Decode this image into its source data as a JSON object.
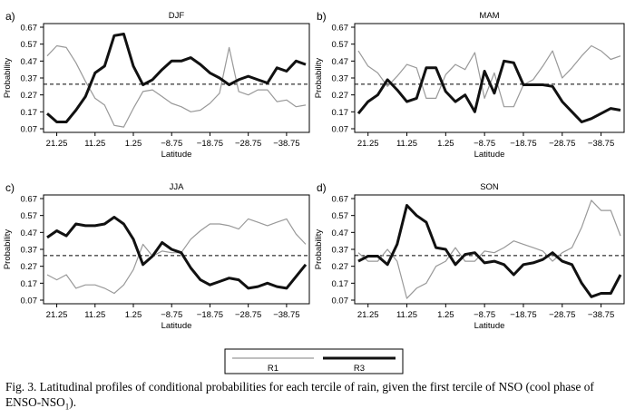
{
  "chart_data": [
    {
      "type": "line",
      "panel_label": "a)",
      "title": "DJF",
      "xlabel": "Latitude",
      "ylabel": "Probability",
      "x": [
        23.75,
        21.25,
        18.75,
        16.25,
        13.75,
        11.25,
        8.75,
        6.25,
        3.75,
        1.25,
        -1.25,
        -3.75,
        -6.25,
        -8.75,
        -11.25,
        -13.75,
        -16.25,
        -18.75,
        -21.25,
        -23.75,
        -26.25,
        -28.75,
        -31.25,
        -33.75,
        -36.25,
        -38.75,
        -41.25,
        -43.75
      ],
      "xticks": [
        "21.25",
        "11.25",
        "1.25",
        "−8.75",
        "−18.75",
        "−28.75",
        "−38.75"
      ],
      "xtick_values": [
        21.25,
        11.25,
        1.25,
        -8.75,
        -18.75,
        -28.75,
        -38.75
      ],
      "yticks": [
        "0.07",
        "0.17",
        "0.27",
        "0.37",
        "0.47",
        "0.57",
        "0.67"
      ],
      "ylim": [
        0.07,
        0.67
      ],
      "reference_line": 0.333,
      "series": [
        {
          "name": "R1",
          "values": [
            0.5,
            0.56,
            0.55,
            0.46,
            0.35,
            0.25,
            0.21,
            0.09,
            0.08,
            0.19,
            0.29,
            0.3,
            0.26,
            0.22,
            0.2,
            0.17,
            0.18,
            0.22,
            0.28,
            0.55,
            0.29,
            0.27,
            0.3,
            0.3,
            0.23,
            0.24,
            0.2,
            0.21
          ]
        },
        {
          "name": "R3",
          "values": [
            0.16,
            0.11,
            0.11,
            0.18,
            0.26,
            0.4,
            0.44,
            0.62,
            0.63,
            0.44,
            0.33,
            0.36,
            0.42,
            0.47,
            0.47,
            0.49,
            0.45,
            0.4,
            0.37,
            0.33,
            0.36,
            0.38,
            0.36,
            0.34,
            0.43,
            0.41,
            0.47,
            0.45
          ]
        }
      ]
    },
    {
      "type": "line",
      "panel_label": "b)",
      "title": "MAM",
      "xlabel": "Latitude",
      "ylabel": "Probability",
      "x": [
        23.75,
        21.25,
        18.75,
        16.25,
        13.75,
        11.25,
        8.75,
        6.25,
        3.75,
        1.25,
        -1.25,
        -3.75,
        -6.25,
        -8.75,
        -11.25,
        -13.75,
        -16.25,
        -18.75,
        -21.25,
        -23.75,
        -26.25,
        -28.75,
        -31.25,
        -33.75,
        -36.25,
        -38.75,
        -41.25,
        -43.75
      ],
      "xticks": [
        "21.25",
        "11.25",
        "1.25",
        "−8.75",
        "−18.75",
        "−28.75",
        "−38.75"
      ],
      "xtick_values": [
        21.25,
        11.25,
        1.25,
        -8.75,
        -18.75,
        -28.75,
        -38.75
      ],
      "yticks": [
        "0.07",
        "0.17",
        "0.27",
        "0.37",
        "0.47",
        "0.57",
        "0.67"
      ],
      "ylim": [
        0.07,
        0.67
      ],
      "reference_line": 0.333,
      "series": [
        {
          "name": "R1",
          "values": [
            0.53,
            0.44,
            0.4,
            0.32,
            0.38,
            0.45,
            0.43,
            0.25,
            0.25,
            0.39,
            0.45,
            0.42,
            0.52,
            0.25,
            0.4,
            0.2,
            0.2,
            0.33,
            0.36,
            0.44,
            0.53,
            0.37,
            0.43,
            0.5,
            0.56,
            0.53,
            0.48,
            0.5
          ]
        },
        {
          "name": "R3",
          "values": [
            0.16,
            0.23,
            0.27,
            0.36,
            0.3,
            0.23,
            0.25,
            0.43,
            0.43,
            0.29,
            0.23,
            0.27,
            0.17,
            0.41,
            0.28,
            0.47,
            0.46,
            0.33,
            0.33,
            0.33,
            0.32,
            0.23,
            0.17,
            0.11,
            0.13,
            0.16,
            0.19,
            0.18
          ]
        }
      ]
    },
    {
      "type": "line",
      "panel_label": "c)",
      "title": "JJA",
      "xlabel": "Latitude",
      "ylabel": "Probability",
      "x": [
        23.75,
        21.25,
        18.75,
        16.25,
        13.75,
        11.25,
        8.75,
        6.25,
        3.75,
        1.25,
        -1.25,
        -3.75,
        -6.25,
        -8.75,
        -11.25,
        -13.75,
        -16.25,
        -18.75,
        -21.25,
        -23.75,
        -26.25,
        -28.75,
        -31.25,
        -33.75,
        -36.25,
        -38.75,
        -41.25,
        -43.75
      ],
      "xticks": [
        "21.25",
        "11.25",
        "1.25",
        "−8.75",
        "−18.75",
        "−28.75",
        "−38.75"
      ],
      "xtick_values": [
        21.25,
        11.25,
        1.25,
        -8.75,
        -18.75,
        -28.75,
        -38.75
      ],
      "yticks": [
        "0.07",
        "0.17",
        "0.27",
        "0.37",
        "0.47",
        "0.57",
        "0.67"
      ],
      "ylim": [
        0.07,
        0.67
      ],
      "reference_line": 0.333,
      "series": [
        {
          "name": "R1",
          "values": [
            0.22,
            0.19,
            0.22,
            0.14,
            0.16,
            0.16,
            0.14,
            0.11,
            0.16,
            0.25,
            0.4,
            0.33,
            0.36,
            0.35,
            0.35,
            0.43,
            0.48,
            0.52,
            0.52,
            0.51,
            0.49,
            0.55,
            0.53,
            0.51,
            0.53,
            0.55,
            0.46,
            0.4
          ]
        },
        {
          "name": "R3",
          "values": [
            0.44,
            0.48,
            0.45,
            0.52,
            0.51,
            0.51,
            0.52,
            0.56,
            0.52,
            0.43,
            0.28,
            0.33,
            0.41,
            0.37,
            0.35,
            0.26,
            0.19,
            0.16,
            0.18,
            0.2,
            0.19,
            0.14,
            0.15,
            0.17,
            0.15,
            0.14,
            0.21,
            0.28
          ]
        }
      ]
    },
    {
      "type": "line",
      "panel_label": "d)",
      "title": "SON",
      "xlabel": "Latitude",
      "ylabel": "Probability",
      "x": [
        23.75,
        21.25,
        18.75,
        16.25,
        13.75,
        11.25,
        8.75,
        6.25,
        3.75,
        1.25,
        -1.25,
        -3.75,
        -6.25,
        -8.75,
        -11.25,
        -13.75,
        -16.25,
        -18.75,
        -21.25,
        -23.75,
        -26.25,
        -28.75,
        -31.25,
        -33.75,
        -36.25,
        -38.75,
        -41.25,
        -43.75
      ],
      "xticks": [
        "21.25",
        "11.25",
        "1.25",
        "−8.75",
        "−18.75",
        "−28.75",
        "−38.75"
      ],
      "xtick_values": [
        21.25,
        11.25,
        1.25,
        -8.75,
        -18.75,
        -28.75,
        -38.75
      ],
      "yticks": [
        "0.07",
        "0.17",
        "0.27",
        "0.37",
        "0.47",
        "0.57",
        "0.67"
      ],
      "ylim": [
        0.07,
        0.67
      ],
      "reference_line": 0.333,
      "series": [
        {
          "name": "R1",
          "values": [
            0.35,
            0.3,
            0.3,
            0.37,
            0.3,
            0.08,
            0.14,
            0.17,
            0.27,
            0.3,
            0.38,
            0.3,
            0.3,
            0.36,
            0.35,
            0.38,
            0.42,
            0.4,
            0.38,
            0.36,
            0.3,
            0.35,
            0.38,
            0.5,
            0.66,
            0.6,
            0.6,
            0.45
          ]
        },
        {
          "name": "R3",
          "values": [
            0.3,
            0.33,
            0.33,
            0.28,
            0.4,
            0.63,
            0.57,
            0.53,
            0.38,
            0.37,
            0.28,
            0.34,
            0.35,
            0.29,
            0.3,
            0.28,
            0.22,
            0.28,
            0.29,
            0.31,
            0.35,
            0.3,
            0.28,
            0.17,
            0.09,
            0.11,
            0.11,
            0.22
          ]
        }
      ]
    }
  ],
  "legend": {
    "items": [
      "R1",
      "R3"
    ]
  },
  "caption": {
    "part1": "Fig. 3. Latitudinal profiles of conditional probabilities for each tercile of rain, given the first tercile of NSO (cool phase of ENSO-NSO",
    "sub": "1",
    "part2": ")."
  }
}
